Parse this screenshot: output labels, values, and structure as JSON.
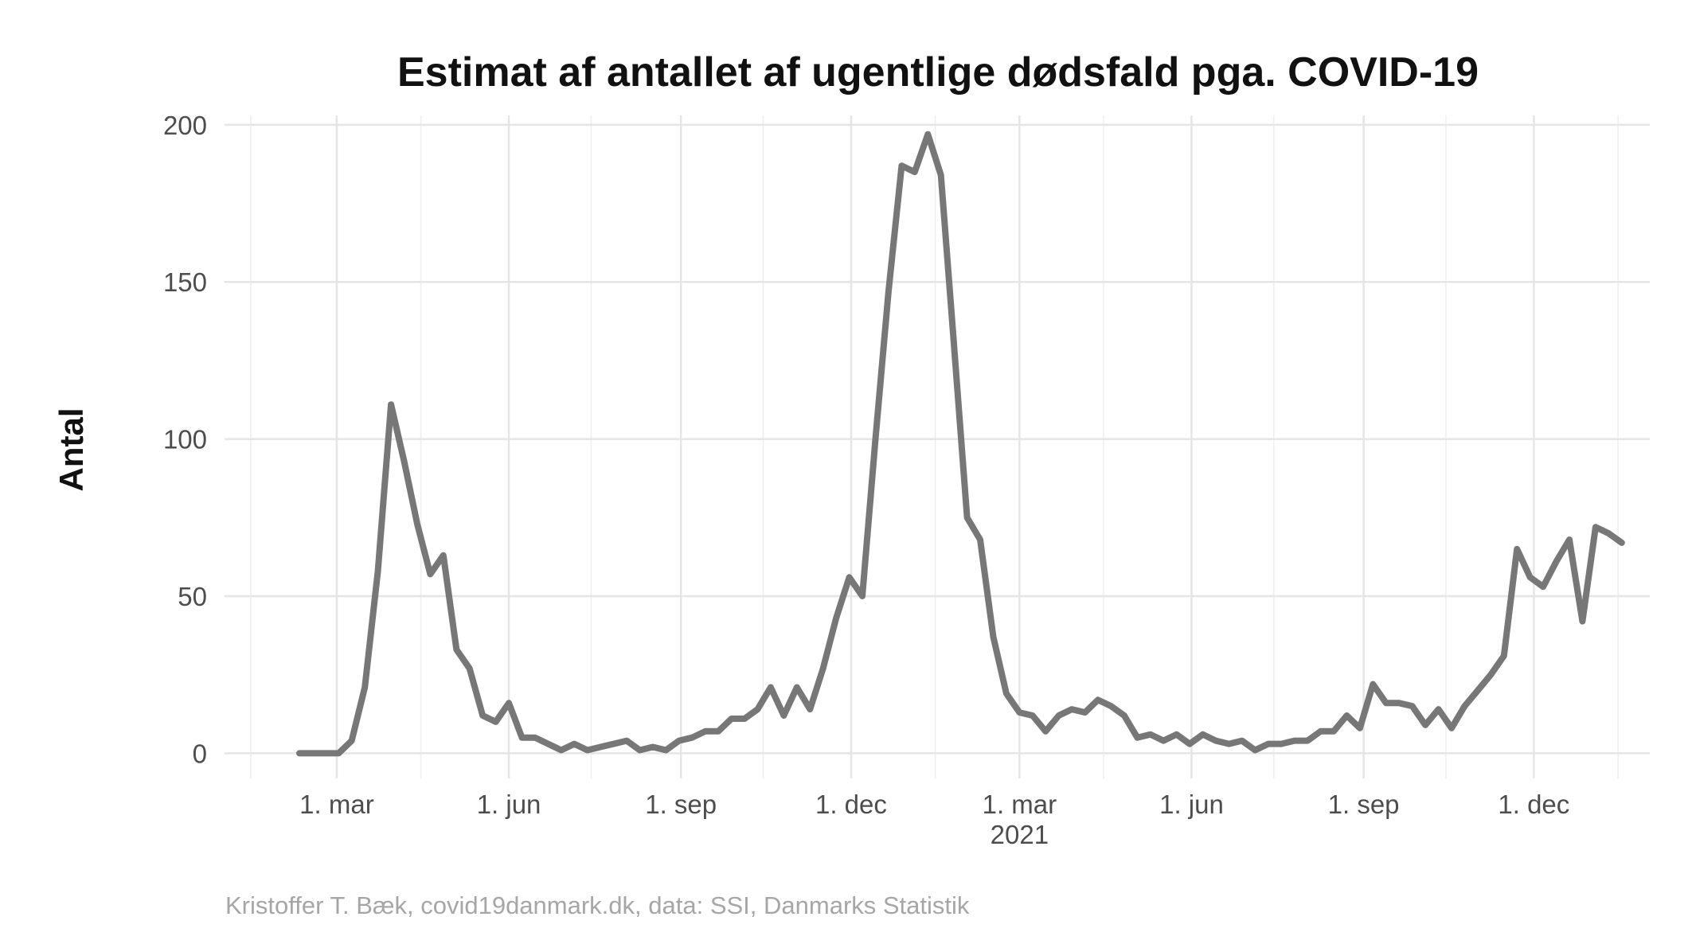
{
  "chart_data": {
    "type": "line",
    "title": "Estimat af antallet af ugentlige dødsfald pga. COVID-19",
    "ylabel": "Antal",
    "xlabel": "",
    "caption": "Kristoffer T. Bæk, covid19danmark.dk, data: SSI, Danmarks Statistik",
    "ylim": [
      -8,
      203
    ],
    "xlim": [
      "2020-01-01",
      "2022-02-01"
    ],
    "yticks": [
      0,
      50,
      100,
      150,
      200
    ],
    "xticks": [
      {
        "date": "2020-03-01",
        "label": "1. mar",
        "sublabel": ""
      },
      {
        "date": "2020-06-01",
        "label": "1. jun",
        "sublabel": ""
      },
      {
        "date": "2020-09-01",
        "label": "1. sep",
        "sublabel": ""
      },
      {
        "date": "2020-12-01",
        "label": "1. dec",
        "sublabel": ""
      },
      {
        "date": "2021-03-01",
        "label": "1. mar",
        "sublabel": "2021"
      },
      {
        "date": "2021-06-01",
        "label": "1. jun",
        "sublabel": ""
      },
      {
        "date": "2021-09-01",
        "label": "1. sep",
        "sublabel": ""
      },
      {
        "date": "2021-12-01",
        "label": "1. dec",
        "sublabel": ""
      }
    ],
    "minor_grid_dates": [
      "2020-01-15",
      "2020-04-15",
      "2020-07-15",
      "2020-10-15",
      "2021-01-15",
      "2021-04-15",
      "2021-07-15",
      "2021-10-15",
      "2022-01-15"
    ],
    "grid": true,
    "legend": "none",
    "line_color": "#777777",
    "series": [
      {
        "x": [
          "2020-02-10",
          "2020-02-17",
          "2020-02-24",
          "2020-03-02",
          "2020-03-09",
          "2020-03-16",
          "2020-03-23",
          "2020-03-30",
          "2020-04-06",
          "2020-04-13",
          "2020-04-20",
          "2020-04-27",
          "2020-05-04",
          "2020-05-11",
          "2020-05-18",
          "2020-05-25",
          "2020-06-01",
          "2020-06-08",
          "2020-06-15",
          "2020-06-22",
          "2020-06-29",
          "2020-07-06",
          "2020-07-13",
          "2020-07-20",
          "2020-07-27",
          "2020-08-03",
          "2020-08-10",
          "2020-08-17",
          "2020-08-24",
          "2020-08-31",
          "2020-09-07",
          "2020-09-14",
          "2020-09-21",
          "2020-09-28",
          "2020-10-05",
          "2020-10-12",
          "2020-10-19",
          "2020-10-26",
          "2020-11-02",
          "2020-11-09",
          "2020-11-16",
          "2020-11-23",
          "2020-11-30",
          "2020-12-07",
          "2020-12-14",
          "2020-12-21",
          "2020-12-28",
          "2021-01-04",
          "2021-01-11",
          "2021-01-18",
          "2021-01-25",
          "2021-02-01",
          "2021-02-08",
          "2021-02-15",
          "2021-02-22",
          "2021-03-01",
          "2021-03-08",
          "2021-03-15",
          "2021-03-22",
          "2021-03-29",
          "2021-04-05",
          "2021-04-12",
          "2021-04-19",
          "2021-04-26",
          "2021-05-03",
          "2021-05-10",
          "2021-05-17",
          "2021-05-24",
          "2021-05-31",
          "2021-06-07",
          "2021-06-14",
          "2021-06-21",
          "2021-06-28",
          "2021-07-05",
          "2021-07-12",
          "2021-07-19",
          "2021-07-26",
          "2021-08-02",
          "2021-08-09",
          "2021-08-16",
          "2021-08-23",
          "2021-08-30",
          "2021-09-06",
          "2021-09-13",
          "2021-09-20",
          "2021-09-27",
          "2021-10-04",
          "2021-10-11",
          "2021-10-18",
          "2021-10-25",
          "2021-11-01",
          "2021-11-08",
          "2021-11-15",
          "2021-11-22",
          "2021-11-29",
          "2021-12-06",
          "2021-12-13",
          "2021-12-20",
          "2021-12-27",
          "2022-01-03",
          "2022-01-10",
          "2022-01-17"
        ],
        "y": [
          0,
          0,
          0,
          0,
          4,
          21,
          58,
          111,
          93,
          73,
          57,
          63,
          33,
          27,
          12,
          10,
          16,
          5,
          5,
          3,
          1,
          3,
          1,
          2,
          3,
          4,
          1,
          2,
          1,
          4,
          5,
          7,
          7,
          11,
          11,
          14,
          21,
          12,
          21,
          14,
          27,
          43,
          56,
          50,
          100,
          147,
          187,
          185,
          197,
          184,
          130,
          75,
          68,
          37,
          19,
          13,
          12,
          7,
          12,
          14,
          13,
          17,
          15,
          12,
          5,
          6,
          4,
          6,
          3,
          6,
          4,
          3,
          4,
          1,
          3,
          3,
          4,
          4,
          7,
          7,
          12,
          8,
          22,
          16,
          16,
          15,
          9,
          14,
          8,
          15,
          20,
          25,
          31,
          65,
          56,
          53,
          61,
          68,
          42,
          72,
          70,
          67
        ]
      }
    ]
  }
}
